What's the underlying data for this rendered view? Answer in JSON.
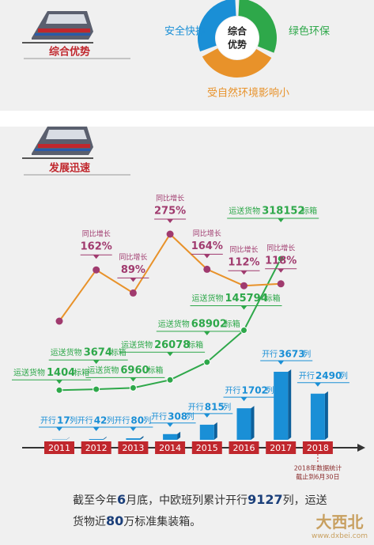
{
  "header1": {
    "title": "综合优势"
  },
  "advantages": {
    "center": [
      "综合",
      "优势"
    ],
    "items": [
      "安全快捷",
      "绿色环保",
      "受自然环境影响小"
    ]
  },
  "header2": {
    "title": "发展迅速"
  },
  "chart_data": {
    "type": "combo",
    "categories": [
      "2011",
      "2012",
      "2013",
      "2014",
      "2015",
      "2016",
      "2017",
      "2018"
    ],
    "series": [
      {
        "name": "同比增长",
        "type": "line",
        "color": "#e8922a",
        "marker_color": "#a03a6e",
        "values": [
          0,
          162,
          89,
          275,
          164,
          112,
          118,
          null
        ],
        "value_labels": [
          null,
          "162%",
          "89%",
          "275%",
          "164%",
          "112%",
          "118%",
          null
        ]
      },
      {
        "name": "运送货物",
        "unit": "标箱",
        "type": "line",
        "color": "#2ea84a",
        "values": [
          1404,
          3674,
          6960,
          26078,
          68902,
          145794,
          318152,
          null
        ]
      },
      {
        "name": "开行",
        "unit": "列",
        "type": "bar",
        "color": "#1a8fd6",
        "values": [
          17,
          42,
          80,
          308,
          815,
          1702,
          3673,
          2490
        ]
      }
    ],
    "note": [
      "2018年数据统计",
      "截止到6月30日"
    ]
  },
  "footer": {
    "parts": [
      "截至今年",
      "6",
      "月底，中欧班列累计开行",
      "9127",
      "列，运送货物近",
      "80",
      "万标准集装箱。"
    ]
  },
  "watermark": {
    "name": "大西北",
    "url": "www.dxbei.com"
  }
}
